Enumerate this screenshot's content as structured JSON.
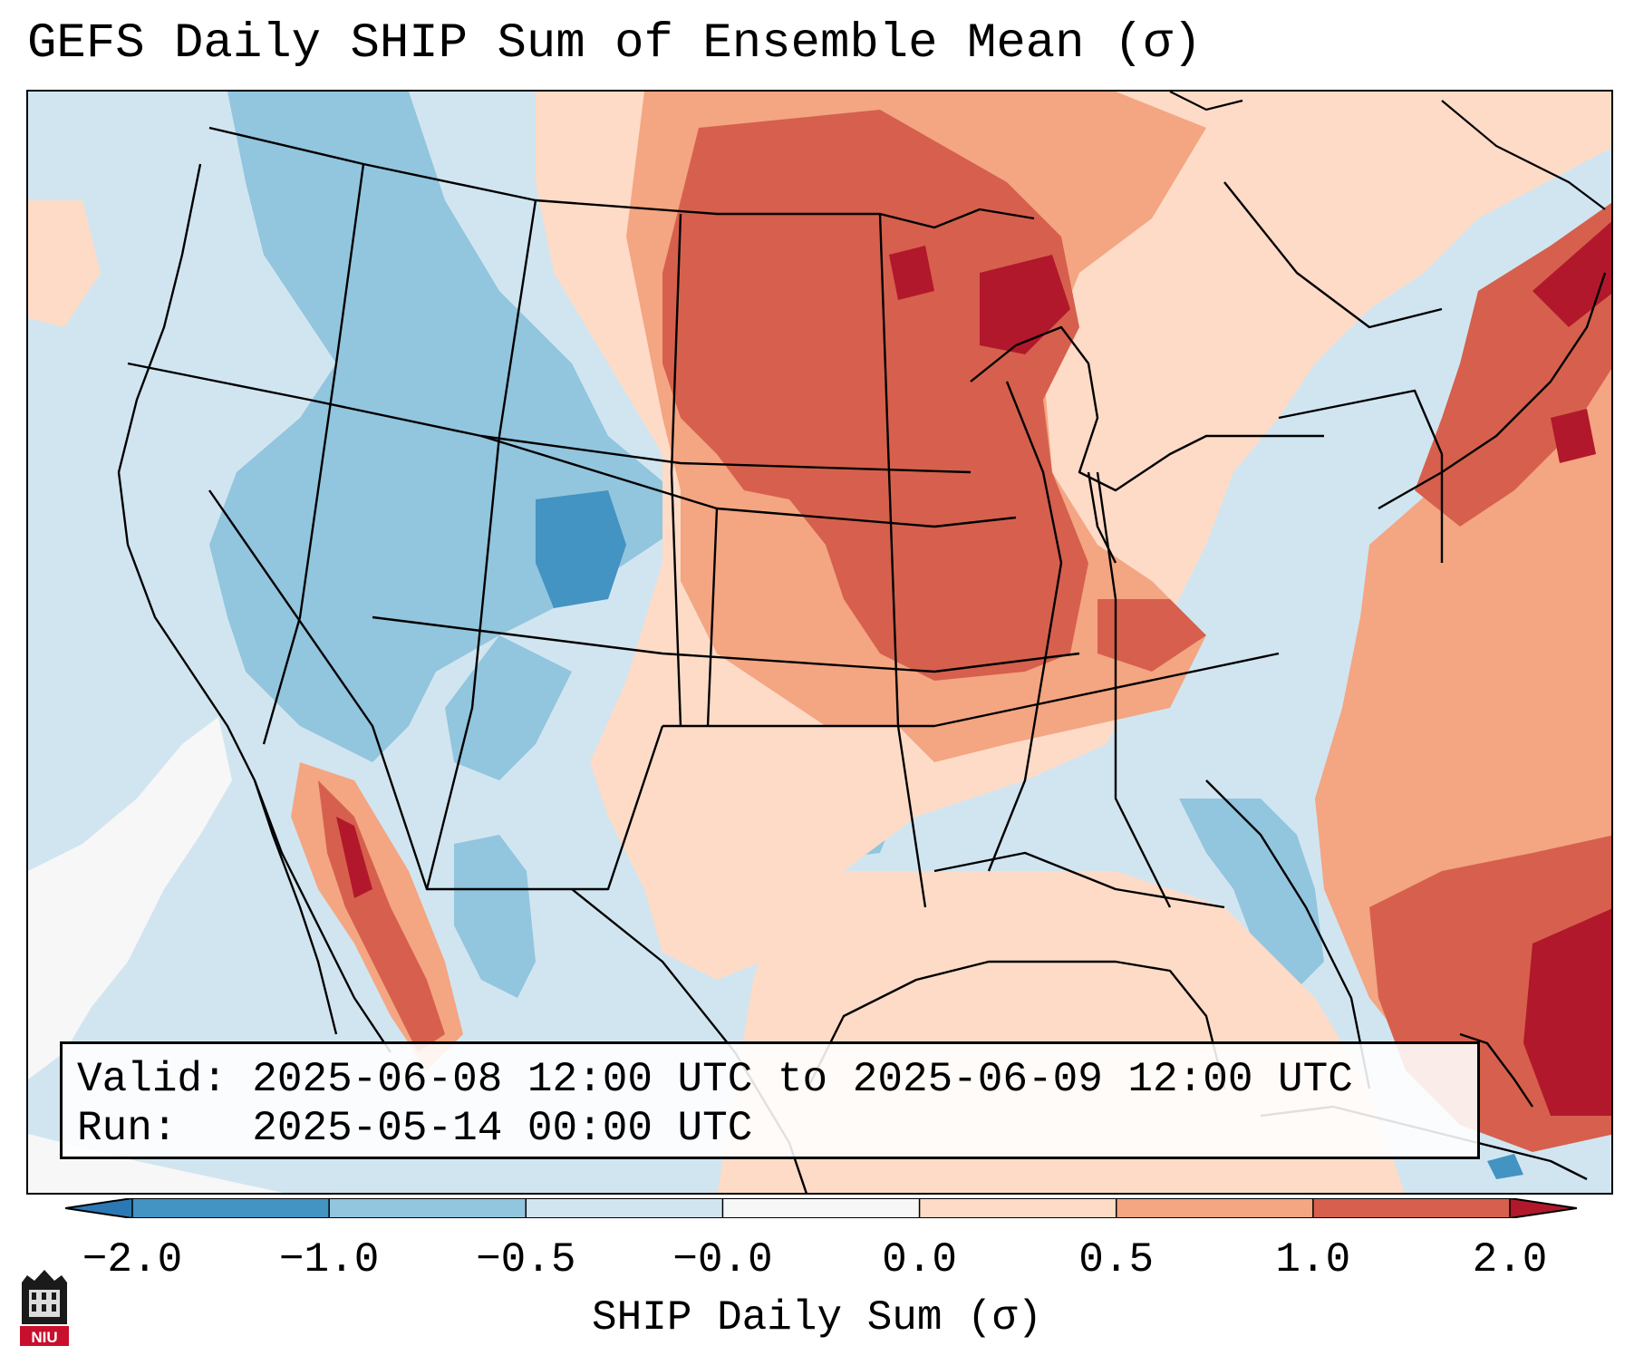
{
  "title": "GEFS Daily SHIP Sum of Ensemble Mean (σ)",
  "info": {
    "valid_label": "Valid:",
    "valid_value": "2025-06-08 12:00 UTC to 2025-06-09 12:00 UTC",
    "run_label": "Run:",
    "run_value": "2025-05-14 00:00 UTC"
  },
  "colorbar": {
    "label": "SHIP Daily Sum (σ)",
    "ticks": [
      "−2.0",
      "−1.0",
      "−0.5",
      "−0.0",
      "0.0",
      "0.5",
      "1.0",
      "2.0"
    ],
    "colors": {
      "under": "#2b78b4",
      "bins": [
        "#4393c3",
        "#92c5de",
        "#d1e5f0",
        "#f7f7f7",
        "#fddbc7",
        "#f4a582",
        "#d6604d"
      ],
      "over": "#b2182b"
    }
  },
  "map": {
    "ocean_color": "#d1e5f0",
    "border_color": "#000000"
  },
  "logo": {
    "text": "NIU",
    "color": "#c8102e"
  }
}
